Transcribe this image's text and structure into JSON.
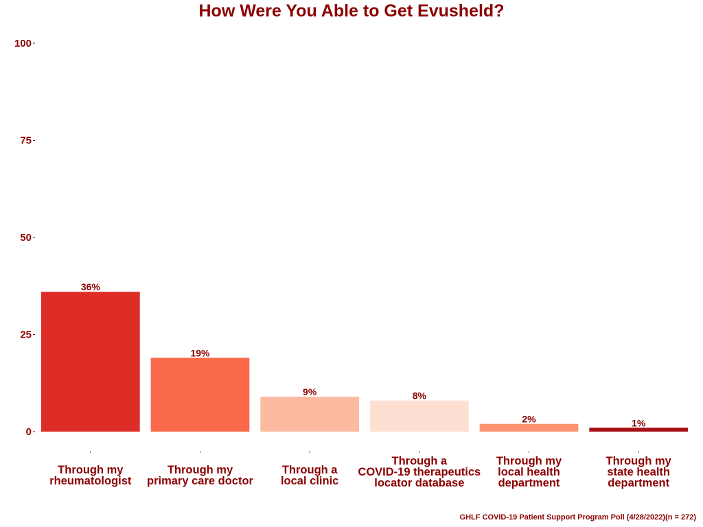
{
  "chart_data": {
    "type": "bar",
    "title": "How Were You Able to Get Evusheld?",
    "categories": [
      [
        "Through my",
        "rheumatologist"
      ],
      [
        "Through my",
        "primary care doctor"
      ],
      [
        "Through a",
        "local clinic"
      ],
      [
        "Through a",
        "COVID-19 therapeutics",
        "locator database"
      ],
      [
        "Through my",
        "local health",
        "department"
      ],
      [
        "Through my",
        "state health",
        "department"
      ]
    ],
    "values": [
      36,
      19,
      9,
      8,
      2,
      1
    ],
    "data_labels": [
      "36%",
      "19%",
      "9%",
      "8%",
      "2%",
      "1%"
    ],
    "colors": [
      "#de2d26",
      "#fb6a4a",
      "#fcbba1",
      "#fee0d2",
      "#fc9272",
      "#a50f15"
    ],
    "ylim": [
      0,
      100
    ],
    "yticks": [
      0,
      25,
      50,
      75,
      100
    ],
    "xlabel": "",
    "ylabel": "",
    "grid": false,
    "legend": "none"
  },
  "caption": "GHLF COVID-19 Patient Support Program Poll (4/28/2022)(n = 272)"
}
